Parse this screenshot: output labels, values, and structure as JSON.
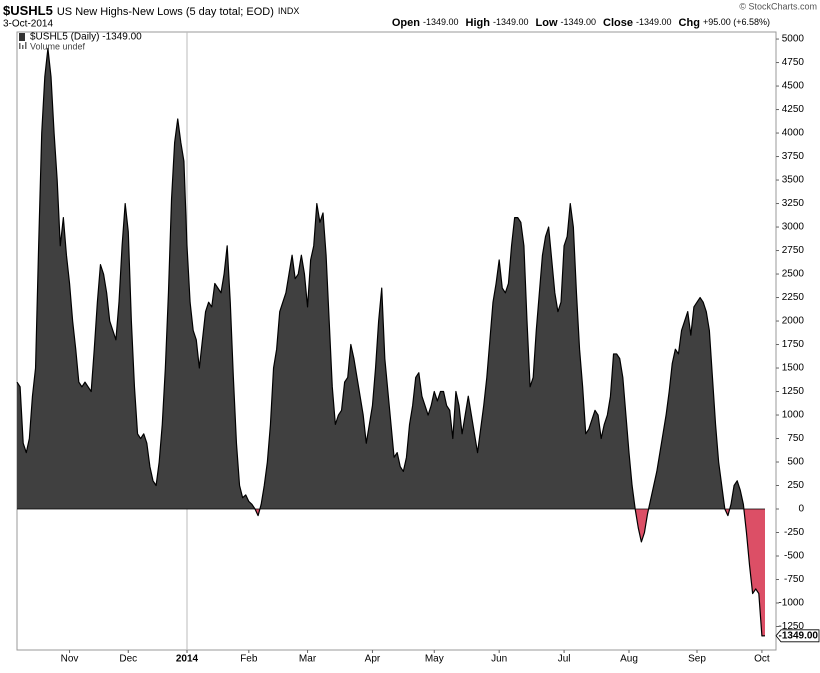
{
  "chart_data": {
    "type": "area",
    "title": "$USHL5",
    "subtitle": "US New Highs-New Lows (5 day total; EOD)",
    "exchange": "INDX",
    "date": "3-Oct-2014",
    "quote": [
      {
        "label": "Open",
        "value": "-1349.00"
      },
      {
        "label": "High",
        "value": "-1349.00"
      },
      {
        "label": "Low",
        "value": "-1349.00"
      },
      {
        "label": "Close",
        "value": "-1349.00"
      },
      {
        "label": "Chg",
        "value": "+95.00 (+6.58%)"
      }
    ],
    "credit": "© StockCharts.com",
    "volume_note": "Volume undef",
    "price_tag": "-1349.00",
    "ylim": [
      -1500,
      5075
    ],
    "yticks": [
      -1250,
      -1000,
      -750,
      -500,
      -250,
      0,
      250,
      500,
      750,
      1000,
      1250,
      1500,
      1750,
      2000,
      2250,
      2500,
      2750,
      3000,
      3250,
      3500,
      3750,
      4000,
      4250,
      4500,
      4750,
      5000
    ],
    "grid": false,
    "categories": [
      null,
      null,
      null,
      null,
      null,
      null,
      null,
      null,
      null,
      null,
      null,
      null,
      null,
      null,
      null,
      null,
      null,
      "Nov",
      null,
      null,
      null,
      null,
      null,
      null,
      null,
      null,
      null,
      null,
      null,
      null,
      null,
      null,
      null,
      null,
      null,
      null,
      "Dec",
      null,
      null,
      null,
      null,
      null,
      null,
      null,
      null,
      null,
      null,
      null,
      null,
      null,
      null,
      null,
      null,
      null,
      null,
      "2014",
      null,
      null,
      null,
      null,
      null,
      null,
      null,
      null,
      null,
      null,
      null,
      null,
      null,
      null,
      null,
      null,
      null,
      null,
      null,
      "Feb",
      null,
      null,
      null,
      null,
      null,
      null,
      null,
      null,
      null,
      null,
      null,
      null,
      null,
      null,
      null,
      null,
      null,
      null,
      "Mar",
      null,
      null,
      null,
      null,
      null,
      null,
      null,
      null,
      null,
      null,
      null,
      null,
      null,
      null,
      null,
      null,
      null,
      null,
      null,
      null,
      "Apr",
      null,
      null,
      null,
      null,
      null,
      null,
      null,
      null,
      null,
      null,
      null,
      null,
      null,
      null,
      null,
      null,
      null,
      null,
      null,
      "May",
      null,
      null,
      null,
      null,
      null,
      null,
      null,
      null,
      null,
      null,
      null,
      null,
      null,
      null,
      null,
      null,
      null,
      null,
      null,
      null,
      "Jun",
      null,
      null,
      null,
      null,
      null,
      null,
      null,
      null,
      null,
      null,
      null,
      null,
      null,
      null,
      null,
      null,
      null,
      null,
      null,
      null,
      "Jul",
      null,
      null,
      null,
      null,
      null,
      null,
      null,
      null,
      null,
      null,
      null,
      null,
      null,
      null,
      null,
      null,
      null,
      null,
      null,
      null,
      "Aug",
      null,
      null,
      null,
      null,
      null,
      null,
      null,
      null,
      null,
      null,
      null,
      null,
      null,
      null,
      null,
      null,
      null,
      null,
      null,
      null,
      null,
      "Sep",
      null,
      null,
      null,
      null,
      null,
      null,
      null,
      null,
      null,
      null,
      null,
      null,
      null,
      null,
      null,
      null,
      null,
      null,
      null,
      null,
      "Oct",
      null
    ],
    "series": [
      {
        "name": "$USHL5 (Daily) -1349.00",
        "color": "#404040",
        "negative_color": "#dc4f66",
        "line_color": "#000000",
        "values": [
          1350,
          1300,
          700,
          600,
          750,
          1200,
          1500,
          2800,
          4000,
          4600,
          4900,
          4600,
          4000,
          3500,
          2800,
          3100,
          2700,
          2400,
          2000,
          1700,
          1350,
          1300,
          1350,
          1300,
          1250,
          1700,
          2200,
          2600,
          2500,
          2300,
          2000,
          1900,
          1800,
          2200,
          2800,
          3250,
          2950,
          2000,
          1300,
          800,
          750,
          800,
          700,
          450,
          300,
          250,
          500,
          900,
          1500,
          2300,
          3300,
          3900,
          4150,
          3900,
          3700,
          2800,
          2200,
          1900,
          1800,
          1500,
          1800,
          2100,
          2200,
          2150,
          2400,
          2350,
          2300,
          2500,
          2800,
          2200,
          1400,
          700,
          250,
          120,
          150,
          80,
          50,
          0,
          -70,
          50,
          250,
          500,
          900,
          1500,
          1700,
          2100,
          2200,
          2300,
          2500,
          2700,
          2450,
          2500,
          2700,
          2500,
          2150,
          2650,
          2800,
          3250,
          3050,
          3150,
          2700,
          2000,
          1300,
          900,
          1000,
          1050,
          1350,
          1400,
          1750,
          1600,
          1400,
          1200,
          1000,
          700,
          900,
          1100,
          1500,
          2000,
          2350,
          1600,
          1250,
          900,
          550,
          600,
          450,
          400,
          550,
          900,
          1100,
          1400,
          1450,
          1200,
          1100,
          1000,
          1100,
          1250,
          1150,
          1250,
          1250,
          1100,
          1050,
          750,
          1250,
          1100,
          800,
          1000,
          1200,
          1000,
          800,
          600,
          850,
          1100,
          1400,
          1800,
          2200,
          2400,
          2650,
          2350,
          2300,
          2400,
          2800,
          3100,
          3100,
          3050,
          2800,
          2000,
          1300,
          1400,
          1900,
          2300,
          2700,
          2900,
          3000,
          2650,
          2300,
          2100,
          2200,
          2800,
          2900,
          3250,
          3000,
          2300,
          1700,
          1300,
          800,
          850,
          950,
          1050,
          1000,
          750,
          900,
          1000,
          1200,
          1650,
          1650,
          1600,
          1400,
          1000,
          600,
          250,
          0,
          -200,
          -350,
          -250,
          -50,
          100,
          250,
          400,
          600,
          800,
          1000,
          1250,
          1550,
          1700,
          1650,
          1900,
          2000,
          2100,
          1850,
          2150,
          2200,
          2250,
          2200,
          2100,
          1900,
          1400,
          900,
          500,
          250,
          0,
          -70,
          50,
          250,
          300,
          200,
          50,
          -250,
          -600,
          -900,
          -850,
          -900,
          -1350,
          -1349
        ]
      }
    ]
  }
}
